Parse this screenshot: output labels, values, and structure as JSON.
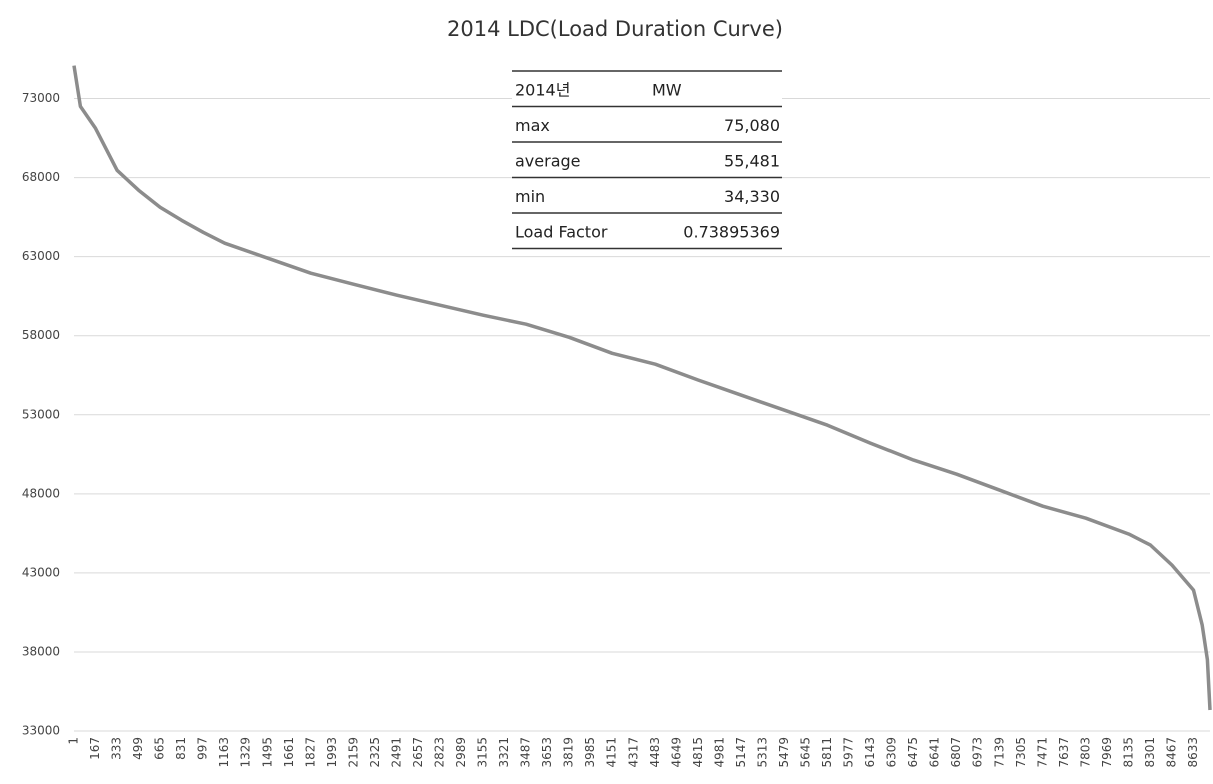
{
  "chart_data": {
    "type": "line",
    "title": "2014 LDC(Load Duration Curve)",
    "series": [
      {
        "name": "MW",
        "color": "#8c8c8c",
        "x": [
          1,
          50,
          167,
          333,
          499,
          665,
          831,
          997,
          1163,
          1495,
          1827,
          2159,
          2491,
          2823,
          3155,
          3487,
          3819,
          4151,
          4483,
          4815,
          5147,
          5479,
          5811,
          6143,
          6475,
          6807,
          7139,
          7471,
          7803,
          8135,
          8301,
          8467,
          8633,
          8700,
          8740,
          8760
        ],
        "values": [
          75080,
          72500,
          71120,
          68460,
          67200,
          66120,
          65300,
          64540,
          63850,
          62900,
          61950,
          61250,
          60560,
          59930,
          59300,
          58730,
          57900,
          56890,
          56200,
          55190,
          54240,
          53290,
          52340,
          51200,
          50130,
          49240,
          48230,
          47220,
          46460,
          45450,
          44760,
          43490,
          41910,
          39700,
          37500,
          34330
        ]
      }
    ],
    "xlim": [
      1,
      8760
    ],
    "xticks": [
      1,
      167,
      333,
      499,
      665,
      831,
      997,
      1163,
      1329,
      1495,
      1661,
      1827,
      1993,
      2159,
      2325,
      2491,
      2657,
      2823,
      2989,
      3155,
      3321,
      3487,
      3653,
      3819,
      3985,
      4151,
      4317,
      4483,
      4649,
      4815,
      4981,
      5147,
      5313,
      5479,
      5645,
      5811,
      5977,
      6143,
      6309,
      6475,
      6641,
      6807,
      6973,
      7139,
      7305,
      7471,
      7637,
      7803,
      7969,
      8135,
      8301,
      8467,
      8633
    ],
    "ylim": [
      33000,
      75500
    ],
    "yticks": [
      33000,
      38000,
      43000,
      48000,
      53000,
      58000,
      63000,
      68000,
      73000
    ],
    "grid": true,
    "table": {
      "header": [
        "2014년",
        "MW"
      ],
      "rows": [
        [
          "max",
          "75,080"
        ],
        [
          "average",
          "55,481"
        ],
        [
          "min",
          "34,330"
        ],
        [
          "Load Factor",
          "0.73895369"
        ]
      ]
    }
  }
}
